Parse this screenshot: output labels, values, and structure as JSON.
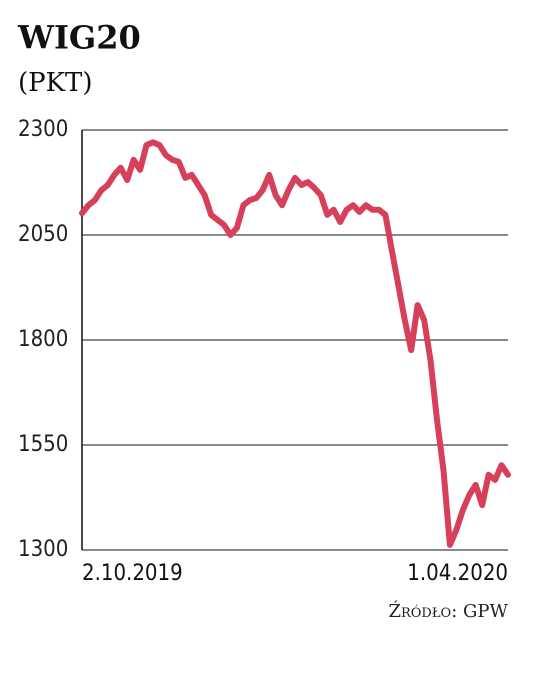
{
  "chart_data": {
    "type": "line",
    "title": "WIG20",
    "subtitle": "(PKT)",
    "source": "Źródło: GPW",
    "categories": [
      "2.10.2019",
      null,
      null,
      null,
      null,
      null,
      null,
      null,
      null,
      null,
      null,
      null,
      null,
      null,
      null,
      null,
      null,
      null,
      null,
      null,
      null,
      null,
      null,
      null,
      null,
      null,
      null,
      null,
      null,
      null,
      null,
      null,
      null,
      null,
      null,
      null,
      null,
      null,
      null,
      null,
      null,
      null,
      null,
      null,
      null,
      null,
      null,
      null,
      null,
      null,
      null,
      null,
      null,
      null,
      null,
      null,
      null,
      null,
      null,
      null,
      null,
      null,
      null,
      null,
      null,
      null,
      "1.04.2020"
    ],
    "series": [
      {
        "name": "WIG20",
        "color": "#d6405a",
        "values": [
          2102,
          2121,
          2133,
          2157,
          2169,
          2193,
          2210,
          2181,
          2229,
          2205,
          2264,
          2271,
          2264,
          2240,
          2229,
          2224,
          2186,
          2193,
          2169,
          2145,
          2098,
          2086,
          2074,
          2050,
          2067,
          2121,
          2133,
          2138,
          2157,
          2193,
          2145,
          2121,
          2157,
          2186,
          2169,
          2176,
          2162,
          2145,
          2098,
          2110,
          2081,
          2110,
          2121,
          2105,
          2121,
          2110,
          2110,
          2098,
          2014,
          1931,
          1848,
          1776,
          1883,
          1848,
          1752,
          1610,
          1490,
          1312,
          1348,
          1395,
          1431,
          1455,
          1407,
          1479,
          1467,
          1502,
          1479
        ]
      }
    ],
    "ylim": [
      1300,
      2300
    ],
    "yticks": [
      1300,
      1550,
      1800,
      2050,
      2300
    ],
    "grid": true
  }
}
